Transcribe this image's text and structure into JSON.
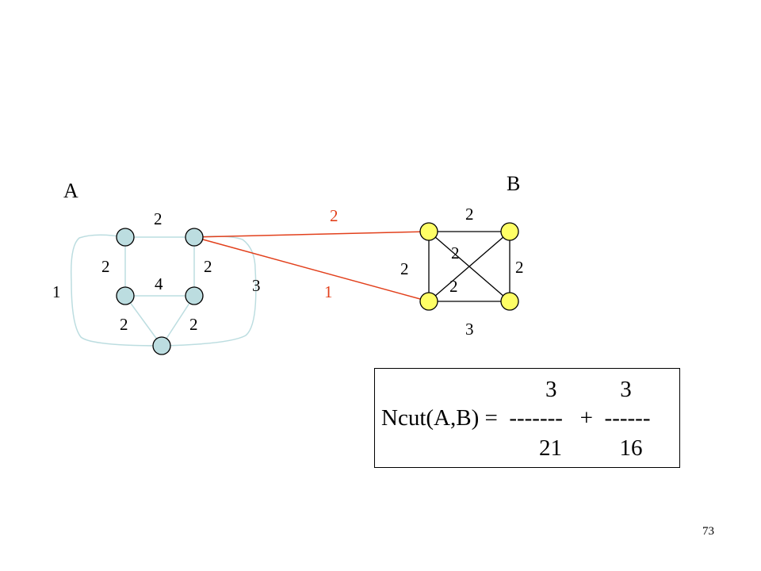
{
  "colors": {
    "group_a_node": "#bcdde0",
    "group_b_node": "#ffff66",
    "group_a_edge": "#bcdde0",
    "group_b_edge": "#000000",
    "cut_edge": "#e2401c"
  },
  "diagram": {
    "group_a_label": "A",
    "group_b_label": "B",
    "group_a_edge_weights": {
      "top_left_to_top_right": "2",
      "top_left_to_mid_left": "2",
      "top_right_to_mid_right": "2",
      "mid_left_to_mid_right": "4",
      "mid_left_to_bottom": "2",
      "mid_right_to_bottom": "2",
      "outer_left_loop": "1",
      "outer_right_loop": "3"
    },
    "group_b_edge_weights": {
      "top": "2",
      "left": "2",
      "right": "2",
      "bottom": "3",
      "diagonal_1": "2",
      "diagonal_2": "2"
    },
    "cut_edge_weights": {
      "upper": "2",
      "lower": "1"
    }
  },
  "formula": {
    "line1": "3           3",
    "line2": "Ncut(A,B) =  -------   +  ------",
    "line3": "21          16"
  },
  "slide_number": "73"
}
